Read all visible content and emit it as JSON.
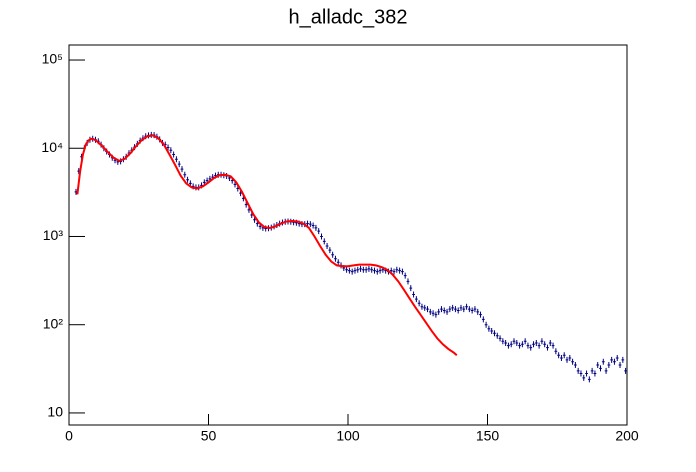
{
  "chart_data": {
    "type": "histogram",
    "title": "h_alladc_382",
    "bins": [
      0,
      1,
      2,
      3,
      4,
      5,
      6,
      7,
      8,
      9,
      10,
      11,
      12,
      13,
      14,
      15,
      16,
      17,
      18,
      19,
      20,
      21,
      22,
      23,
      24,
      25,
      26,
      27,
      28,
      29,
      30,
      31,
      32,
      33,
      34,
      35,
      36,
      37,
      38,
      39,
      40,
      41,
      42,
      43,
      44,
      45,
      46,
      47,
      48,
      49,
      50,
      51,
      52,
      53,
      54,
      55,
      56,
      57,
      58,
      59,
      60,
      61,
      62,
      63,
      64,
      65,
      66,
      67,
      68,
      69,
      70,
      71,
      72,
      73,
      74,
      75,
      76,
      77,
      78,
      79,
      80,
      81,
      82,
      83,
      84,
      85,
      86,
      87,
      88,
      89,
      90,
      91,
      92,
      93,
      94,
      95,
      96,
      97,
      98,
      99,
      100,
      101,
      102,
      103,
      104,
      105,
      106,
      107,
      108,
      109,
      110,
      111,
      112,
      113,
      114,
      115,
      116,
      117,
      118,
      119,
      120,
      121,
      122,
      123,
      124,
      125,
      126,
      127,
      128,
      129,
      130,
      131,
      132,
      133,
      134,
      135,
      136,
      137,
      138,
      139,
      140,
      141,
      142,
      143,
      144,
      145,
      146,
      147,
      148,
      149,
      150,
      151,
      152,
      153,
      154,
      155,
      156,
      157,
      158,
      159,
      160,
      161,
      162,
      163,
      164,
      165,
      166,
      167,
      168,
      169,
      170,
      171,
      172,
      173,
      174,
      175,
      176,
      177,
      178,
      179,
      180,
      181,
      182,
      183,
      184,
      185,
      186,
      187,
      188,
      189,
      190,
      191,
      192,
      193,
      194,
      195,
      196,
      197,
      198,
      199,
      200
    ],
    "values": [
      null,
      null,
      3200,
      5500,
      8000,
      10000,
      11500,
      12500,
      12800,
      12500,
      12000,
      11000,
      10000,
      9200,
      8500,
      7800,
      7300,
      7000,
      7100,
      7500,
      8000,
      8800,
      9500,
      10300,
      11200,
      12200,
      13000,
      13700,
      14000,
      14200,
      14100,
      13500,
      12600,
      11500,
      11000,
      10200,
      9500,
      8500,
      7500,
      6600,
      5800,
      5000,
      4400,
      4000,
      3700,
      3600,
      3600,
      3800,
      4100,
      4300,
      4500,
      4700,
      4900,
      5000,
      5000,
      4950,
      4850,
      4600,
      4300,
      3900,
      3500,
      3100,
      2700,
      2300,
      2000,
      1750,
      1550,
      1400,
      1300,
      1250,
      1230,
      1240,
      1260,
      1300,
      1350,
      1400,
      1440,
      1470,
      1480,
      1470,
      1450,
      1430,
      1400,
      1380,
      1380,
      1400,
      1380,
      1330,
      1250,
      1150,
      1000,
      880,
      780,
      700,
      620,
      560,
      510,
      470,
      440,
      420,
      410,
      400,
      410,
      420,
      430,
      420,
      420,
      430,
      420,
      410,
      400,
      410,
      420,
      410,
      400,
      410,
      400,
      420,
      410,
      400,
      360,
      310,
      260,
      220,
      195,
      175,
      160,
      155,
      150,
      140,
      135,
      130,
      140,
      150,
      145,
      140,
      150,
      155,
      150,
      145,
      155,
      150,
      160,
      150,
      145,
      150,
      140,
      130,
      115,
      100,
      90,
      85,
      80,
      75,
      70,
      65,
      62,
      58,
      60,
      65,
      62,
      58,
      60,
      65,
      58,
      55,
      60,
      62,
      58,
      65,
      60,
      55,
      62,
      58,
      50,
      45,
      42,
      45,
      40,
      42,
      38,
      35,
      30,
      28,
      25,
      28,
      24,
      30,
      28,
      35,
      32,
      38,
      30,
      35,
      40,
      38,
      42,
      35,
      40,
      30
    ],
    "color": "#000080",
    "fit": {
      "color": "#ff0000",
      "x": [
        3,
        4,
        5,
        6,
        7,
        8,
        9,
        10,
        12,
        14,
        16,
        18,
        20,
        22,
        24,
        26,
        28,
        30,
        32,
        34,
        36,
        38,
        40,
        42,
        44,
        46,
        48,
        50,
        52,
        54,
        56,
        58,
        60,
        62,
        64,
        66,
        68,
        70,
        72,
        74,
        76,
        78,
        80,
        82,
        84,
        86,
        88,
        90,
        92,
        94,
        96,
        98,
        100,
        102,
        104,
        106,
        108,
        110,
        112,
        114,
        116,
        118,
        120,
        122,
        124,
        126,
        128,
        130,
        132,
        134,
        136,
        138,
        139
      ],
      "values": [
        3000,
        5500,
        8500,
        11000,
        12300,
        12800,
        12600,
        12000,
        10500,
        9000,
        7800,
        7200,
        7600,
        8800,
        10500,
        12300,
        13600,
        14000,
        13000,
        11000,
        8500,
        6500,
        4900,
        4000,
        3600,
        3500,
        3700,
        4100,
        4600,
        4950,
        5000,
        4800,
        4100,
        3200,
        2400,
        1800,
        1450,
        1280,
        1250,
        1300,
        1400,
        1480,
        1500,
        1480,
        1400,
        1250,
        1000,
        780,
        620,
        520,
        470,
        460,
        460,
        470,
        480,
        480,
        480,
        470,
        450,
        420,
        370,
        310,
        250,
        200,
        160,
        130,
        105,
        85,
        70,
        60,
        53,
        48,
        45
      ]
    },
    "xlim": [
      0,
      200
    ],
    "xticks": [
      0,
      50,
      100,
      150,
      200
    ],
    "ylim": [
      7.3,
      148000
    ],
    "log_y": true,
    "yticks": [
      {
        "value": 10,
        "label": "10"
      },
      {
        "value": 100,
        "label": "10²"
      },
      {
        "value": 1000,
        "label": "10³"
      },
      {
        "value": 10000,
        "label": "10⁴"
      },
      {
        "value": 100000,
        "label": "10⁵"
      }
    ]
  }
}
